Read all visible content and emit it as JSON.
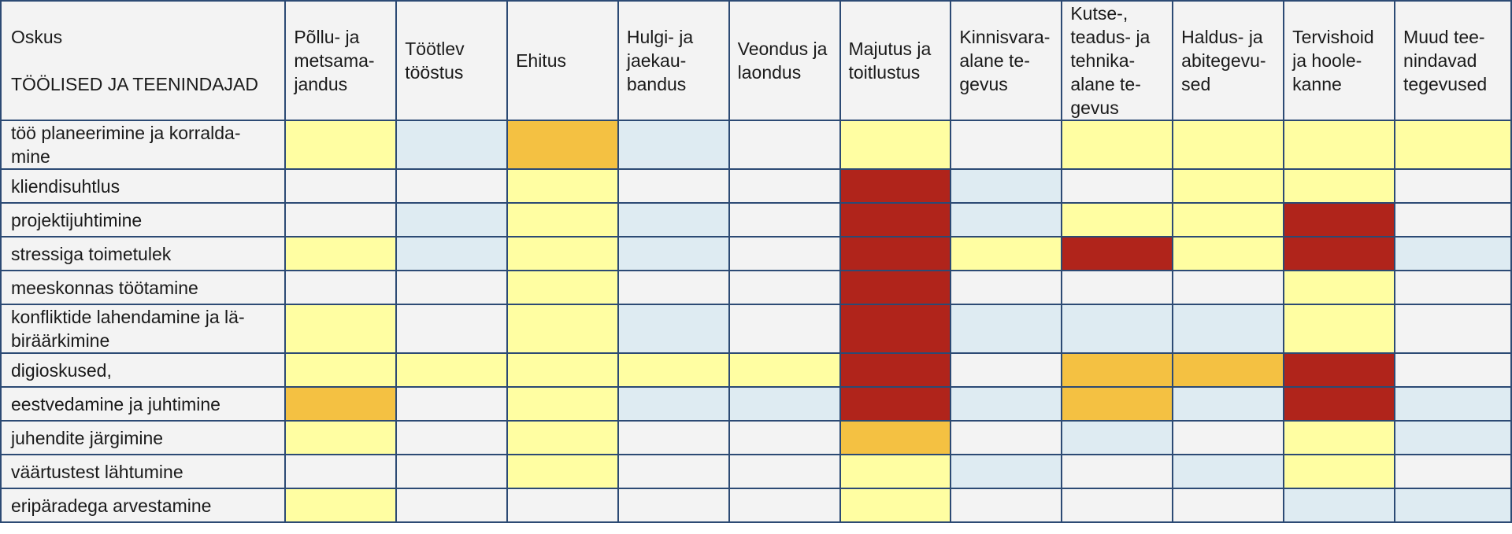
{
  "table": {
    "header": {
      "corner_line1": "Oskus",
      "corner_line2": "TÖÖLISED JA TEENINDAJAD",
      "sectors": [
        "Põllu- ja metsama-jandus",
        "Töötlev tööstus",
        "Ehitus",
        "Hulgi- ja jaekau-bandus",
        "Veondus ja laondus",
        "Majutus ja toitlustus",
        "Kinnisvara-alane te-gevus",
        "Kutse-, teadus- ja tehnika-alane te-gevus",
        "Haldus- ja abitegevu-sed",
        "Tervishoid ja hoole-kanne",
        "Muud tee-nindavad tegevused"
      ]
    },
    "legend_colors": {
      "g": "#f3f3f3",
      "b": "#deebf2",
      "y": "#fffea2",
      "o": "#f4c142",
      "r": "#b0241b"
    },
    "rows": [
      {
        "skill": "töö planeerimine ja korralda-mine",
        "cells": [
          "y",
          "b",
          "o",
          "b",
          "g",
          "y",
          "g",
          "y",
          "y",
          "y",
          "y"
        ]
      },
      {
        "skill": "kliendisuhtlus",
        "cells": [
          "g",
          "g",
          "y",
          "g",
          "g",
          "r",
          "b",
          "g",
          "y",
          "y",
          "g"
        ]
      },
      {
        "skill": "projektijuhtimine",
        "cells": [
          "g",
          "b",
          "y",
          "b",
          "g",
          "r",
          "b",
          "y",
          "y",
          "r",
          "g"
        ]
      },
      {
        "skill": "stressiga toimetulek",
        "cells": [
          "y",
          "b",
          "y",
          "b",
          "g",
          "r",
          "y",
          "r",
          "y",
          "r",
          "b"
        ]
      },
      {
        "skill": "meeskonnas töötamine",
        "cells": [
          "g",
          "g",
          "y",
          "g",
          "g",
          "r",
          "g",
          "g",
          "g",
          "y",
          "g"
        ]
      },
      {
        "skill": "konfliktide lahendamine ja lä-biräärkimine",
        "cells": [
          "y",
          "g",
          "y",
          "b",
          "g",
          "r",
          "b",
          "b",
          "b",
          "y",
          "g"
        ]
      },
      {
        "skill": "digioskused,",
        "cells": [
          "y",
          "y",
          "y",
          "y",
          "y",
          "r",
          "g",
          "o",
          "o",
          "r",
          "g"
        ]
      },
      {
        "skill": "eestvedamine ja juhtimine",
        "cells": [
          "o",
          "g",
          "y",
          "b",
          "b",
          "r",
          "b",
          "o",
          "b",
          "r",
          "b"
        ]
      },
      {
        "skill": "juhendite järgimine",
        "cells": [
          "y",
          "g",
          "y",
          "g",
          "g",
          "o",
          "g",
          "b",
          "g",
          "y",
          "b"
        ]
      },
      {
        "skill": "väärtustest lähtumine",
        "cells": [
          "g",
          "g",
          "y",
          "g",
          "g",
          "y",
          "b",
          "g",
          "b",
          "y",
          "g"
        ]
      },
      {
        "skill": "eripäradega arvestamine",
        "cells": [
          "y",
          "g",
          "g",
          "g",
          "g",
          "y",
          "g",
          "g",
          "g",
          "b",
          "b"
        ]
      }
    ]
  }
}
